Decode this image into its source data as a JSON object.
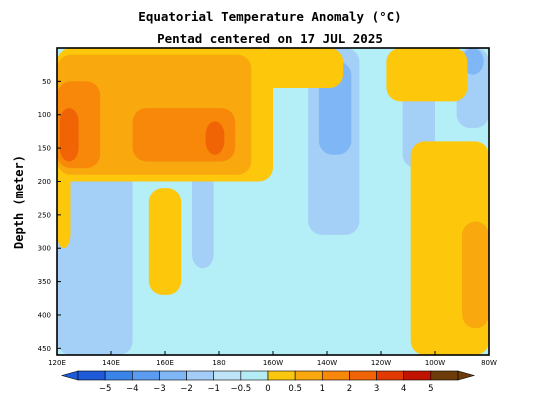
{
  "chart_data": {
    "type": "heatmap",
    "title": "Equatorial Temperature Anomaly (°C)",
    "subtitle": "Pentad centered on 17 JUL 2025",
    "ylabel": "Depth (meter)",
    "xlabel": "",
    "x_range": [
      120,
      280
    ],
    "y_range": [
      0,
      460
    ],
    "y_reversed": true,
    "x_ticks": [
      {
        "label": "120E",
        "value": 120
      },
      {
        "label": "140E",
        "value": 140
      },
      {
        "label": "160E",
        "value": 160
      },
      {
        "label": "180",
        "value": 180
      },
      {
        "label": "160W",
        "value": 200
      },
      {
        "label": "140W",
        "value": 220
      },
      {
        "label": "120W",
        "value": 240
      },
      {
        "label": "100W",
        "value": 260
      },
      {
        "label": "80W",
        "value": 280
      }
    ],
    "y_ticks": [
      {
        "label": "50",
        "value": 50
      },
      {
        "label": "100",
        "value": 100
      },
      {
        "label": "150",
        "value": 150
      },
      {
        "label": "200",
        "value": 200
      },
      {
        "label": "250",
        "value": 250
      },
      {
        "label": "300",
        "value": 300
      },
      {
        "label": "350",
        "value": 350
      },
      {
        "label": "400",
        "value": 400
      },
      {
        "label": "450",
        "value": 450
      }
    ],
    "colorbar": {
      "labels": [
        "−5",
        "−4",
        "−3",
        "−2",
        "−1",
        "−0.5",
        "0",
        "0.5",
        "1",
        "2",
        "3",
        "4",
        "5"
      ],
      "colors": [
        "#1f5bd9",
        "#3a83e8",
        "#5c9cf0",
        "#7fb6f5",
        "#a3cdf7",
        "#bfe4f7",
        "#b3ecf5",
        "#f9c80e",
        "#f9a90e",
        "#f7880a",
        "#f06405",
        "#e03a02",
        "#c01401",
        "#6e3c0a"
      ]
    },
    "regions": [
      {
        "anomaly": -0.5,
        "color": "#b4eef7",
        "lon": [
          120,
          280
        ],
        "depth": [
          0,
          460
        ]
      },
      {
        "anomaly": -1,
        "color": "#a4cff6",
        "lon": [
          120,
          148
        ],
        "depth": [
          170,
          460
        ]
      },
      {
        "anomaly": -1,
        "color": "#a4cff6",
        "lon": [
          170,
          178
        ],
        "depth": [
          160,
          330
        ]
      },
      {
        "anomaly": -1,
        "color": "#a4cff6",
        "lon": [
          213,
          232
        ],
        "depth": [
          0,
          280
        ]
      },
      {
        "anomaly": -1,
        "color": "#a4cff6",
        "lon": [
          248,
          260
        ],
        "depth": [
          0,
          180
        ]
      },
      {
        "anomaly": -1,
        "color": "#a4cff6",
        "lon": [
          268,
          280
        ],
        "depth": [
          0,
          120
        ]
      },
      {
        "anomaly": -2,
        "color": "#7fb6f5",
        "lon": [
          217,
          229
        ],
        "depth": [
          20,
          160
        ]
      },
      {
        "anomaly": -2,
        "color": "#7fb6f5",
        "lon": [
          270,
          278
        ],
        "depth": [
          0,
          40
        ]
      },
      {
        "anomaly": 0.5,
        "color": "#fdc70c",
        "lon": [
          120,
          200
        ],
        "depth": [
          0,
          200
        ]
      },
      {
        "anomaly": 0.5,
        "color": "#fdc70c",
        "lon": [
          194,
          226
        ],
        "depth": [
          0,
          60
        ]
      },
      {
        "anomaly": 0.5,
        "color": "#fdc70c",
        "lon": [
          242,
          272
        ],
        "depth": [
          0,
          80
        ]
      },
      {
        "anomaly": 0.5,
        "color": "#fdc70c",
        "lon": [
          251,
          280
        ],
        "depth": [
          140,
          460
        ]
      },
      {
        "anomaly": 0.5,
        "color": "#fdc70c",
        "lon": [
          154,
          166
        ],
        "depth": [
          210,
          370
        ]
      },
      {
        "anomaly": 0.5,
        "color": "#fdc70c",
        "lon": [
          120,
          125
        ],
        "depth": [
          150,
          300
        ]
      },
      {
        "anomaly": 1,
        "color": "#f9a90e",
        "lon": [
          120,
          192
        ],
        "depth": [
          10,
          190
        ]
      },
      {
        "anomaly": 1,
        "color": "#f9a90e",
        "lon": [
          270,
          280
        ],
        "depth": [
          260,
          420
        ]
      },
      {
        "anomaly": 2,
        "color": "#f7880a",
        "lon": [
          120,
          136
        ],
        "depth": [
          50,
          180
        ]
      },
      {
        "anomaly": 2,
        "color": "#f7880a",
        "lon": [
          148,
          186
        ],
        "depth": [
          90,
          170
        ]
      },
      {
        "anomaly": 3,
        "color": "#f06405",
        "lon": [
          121,
          128
        ],
        "depth": [
          90,
          170
        ]
      },
      {
        "anomaly": 3,
        "color": "#f06405",
        "lon": [
          175,
          182
        ],
        "depth": [
          110,
          160
        ]
      }
    ]
  }
}
